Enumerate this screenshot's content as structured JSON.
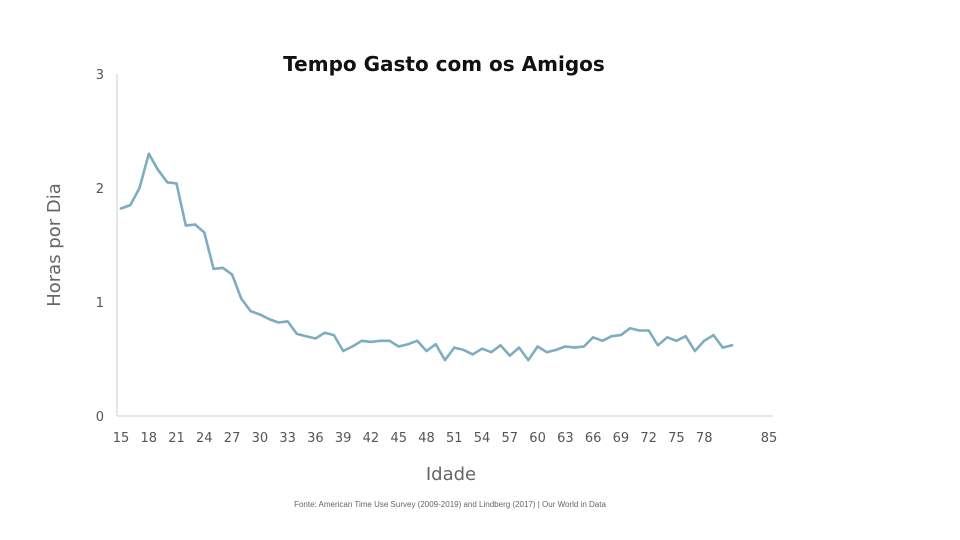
{
  "chart_data": {
    "type": "line",
    "title": "Tempo Gasto com os Amigos",
    "xlabel": "Idade",
    "ylabel": "Horas por Dia",
    "source": "Fonte: American Time Use Survey (2009-2019) and Lindberg (2017) | Our World in Data",
    "xlim": [
      15,
      85
    ],
    "ylim": [
      0,
      3
    ],
    "x_ticks": [
      15,
      18,
      21,
      24,
      27,
      30,
      33,
      36,
      39,
      42,
      45,
      48,
      51,
      54,
      57,
      60,
      63,
      66,
      69,
      72,
      75,
      78,
      85
    ],
    "y_ticks": [
      0,
      1,
      2,
      3
    ],
    "grid": false,
    "line_color": "#7eadc0",
    "series": [
      {
        "x": [
          15,
          16,
          17,
          18,
          19,
          20,
          21,
          22,
          23,
          24,
          25,
          26,
          27,
          28,
          29,
          30,
          31,
          32,
          33,
          34,
          35,
          36,
          37,
          38,
          39,
          40,
          41,
          42,
          43,
          44,
          45,
          46,
          47,
          48,
          49,
          50,
          51,
          52,
          53,
          54,
          55,
          56,
          57,
          58,
          59,
          60,
          61,
          62,
          63,
          64,
          65,
          66,
          67,
          68,
          69,
          70,
          71,
          72,
          73,
          74,
          75,
          76,
          77,
          78,
          79,
          80,
          81
        ],
        "values": [
          1.82,
          1.85,
          2.0,
          2.3,
          2.16,
          2.05,
          2.04,
          1.67,
          1.68,
          1.61,
          1.29,
          1.3,
          1.24,
          1.03,
          0.92,
          0.89,
          0.85,
          0.82,
          0.83,
          0.72,
          0.7,
          0.68,
          0.73,
          0.71,
          0.57,
          0.61,
          0.66,
          0.65,
          0.66,
          0.66,
          0.61,
          0.63,
          0.66,
          0.57,
          0.63,
          0.49,
          0.6,
          0.58,
          0.54,
          0.59,
          0.56,
          0.62,
          0.53,
          0.6,
          0.49,
          0.61,
          0.56,
          0.58,
          0.61,
          0.6,
          0.61,
          0.69,
          0.66,
          0.7,
          0.71,
          0.77,
          0.75,
          0.75,
          0.62,
          0.69,
          0.66,
          0.7,
          0.57,
          0.66,
          0.71,
          0.6,
          0.62
        ]
      }
    ]
  }
}
